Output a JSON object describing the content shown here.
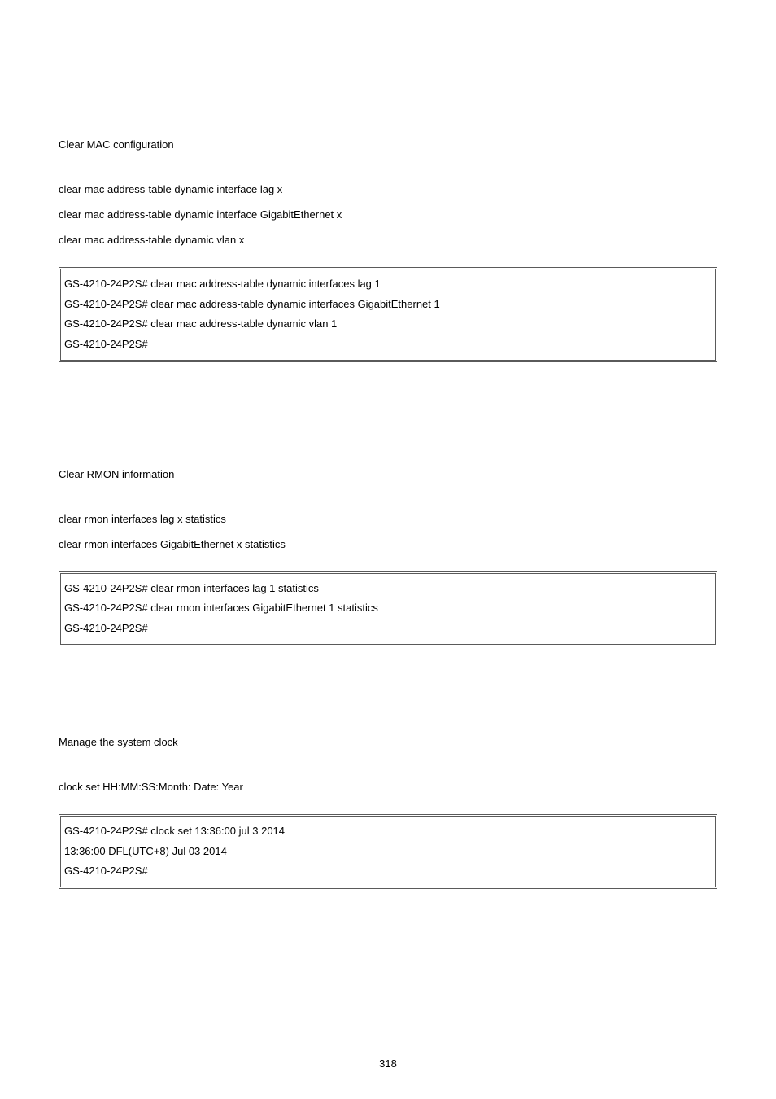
{
  "section1": {
    "desc": "Clear MAC configuration",
    "commands": [
      "clear mac address-table dynamic interface lag x",
      "clear mac address-table dynamic interface GigabitEthernet x",
      "clear mac address-table dynamic vlan x"
    ],
    "terminal": [
      "GS-4210-24P2S# clear mac address-table dynamic interfaces lag 1",
      "GS-4210-24P2S# clear mac address-table dynamic interfaces GigabitEthernet 1",
      "GS-4210-24P2S# clear mac address-table dynamic vlan 1",
      "GS-4210-24P2S#"
    ]
  },
  "section2": {
    "desc": "Clear RMON information",
    "commands": [
      "clear rmon interfaces lag x statistics",
      "clear rmon interfaces GigabitEthernet x statistics"
    ],
    "terminal": [
      "GS-4210-24P2S# clear rmon interfaces lag 1 statistics",
      "GS-4210-24P2S# clear rmon interfaces GigabitEthernet 1 statistics",
      "GS-4210-24P2S#"
    ]
  },
  "section3": {
    "desc": "Manage the system clock",
    "commands": [
      "clock set HH:MM:SS:Month: Date: Year"
    ],
    "terminal": [
      "GS-4210-24P2S# clock set 13:36:00 jul 3 2014",
      "13:36:00 DFL(UTC+8) Jul 03 2014",
      "GS-4210-24P2S#"
    ]
  },
  "page_number": "318",
  "style": {
    "background_color": "#ffffff",
    "text_color": "#000000",
    "border_color": "#5a5a5a",
    "body_fontsize": 13,
    "font_family": "Arial"
  }
}
